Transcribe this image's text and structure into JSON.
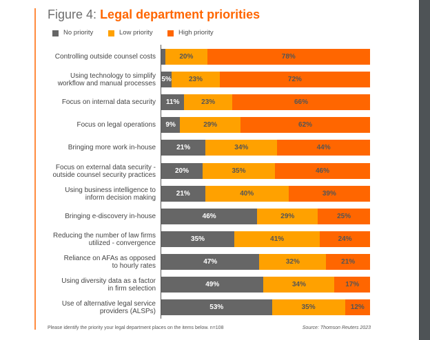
{
  "figure": {
    "prefix": "Figure 4:",
    "title": "Legal department priorities"
  },
  "footnote": "Please identify the priority your legal department places on the items below. n=108",
  "source": "Source: Thomson Reuters 2023",
  "colors": {
    "no_priority": "#666666",
    "low_priority": "#FFA100",
    "high_priority": "#FF6600",
    "title_accent": "#FF6600"
  },
  "chart_data": {
    "type": "bar",
    "orientation": "horizontal",
    "stacked": true,
    "title": "Figure 4: Legal department priorities",
    "xlabel": "",
    "ylabel": "",
    "legend_position": "top-left",
    "legend": [
      "No priority",
      "Low priority",
      "High priority"
    ],
    "categories": [
      "Controlling outside counsel costs",
      "Using technology to simplify workflow and manual processes",
      "Focus on internal data security",
      "Focus on legal operations",
      "Bringing more work in-house",
      "Focus on external data security - outside counsel security practices",
      "Using business intelligence to inform decision making",
      "Bringing e-discovery in-house",
      "Reducing the number of law firms utilized - convergence",
      "Reliance on AFAs as opposed to hourly rates",
      "Using diversity data as a factor in firm selection",
      "Use of alternative legal service providers (ALSPs)"
    ],
    "category_lines": [
      [
        "Controlling outside counsel costs"
      ],
      [
        "Using technology to simplify",
        "workflow and manual processes"
      ],
      [
        "Focus on internal data security"
      ],
      [
        "Focus on legal operations"
      ],
      [
        "Bringing more work in-house"
      ],
      [
        "Focus on external data security -",
        "outside counsel security practices"
      ],
      [
        "Using business intelligence to",
        "inform decision making"
      ],
      [
        "Bringing e-discovery in-house"
      ],
      [
        "Reducing the number of law firms",
        "utilized - convergence"
      ],
      [
        "Reliance on AFAs as opposed",
        "to hourly rates"
      ],
      [
        "Using diversity data as a factor",
        "in firm selection"
      ],
      [
        "Use of alternative legal service",
        "providers (ALSPs)"
      ]
    ],
    "series": [
      {
        "name": "No priority",
        "key": "none",
        "values": [
          2,
          5,
          11,
          9,
          21,
          20,
          21,
          46,
          35,
          47,
          49,
          53
        ],
        "labels": [
          "",
          "5%",
          "11%",
          "9%",
          "21%",
          "20%",
          "21%",
          "46%",
          "35%",
          "47%",
          "49%",
          "53%"
        ]
      },
      {
        "name": "Low priority",
        "key": "low",
        "values": [
          20,
          23,
          23,
          29,
          34,
          35,
          40,
          29,
          41,
          32,
          34,
          35
        ],
        "labels": [
          "20%",
          "23%",
          "23%",
          "29%",
          "34%",
          "35%",
          "40%",
          "29%",
          "41%",
          "32%",
          "34%",
          "35%"
        ]
      },
      {
        "name": "High priority",
        "key": "high",
        "values": [
          78,
          72,
          66,
          62,
          44,
          46,
          39,
          25,
          24,
          21,
          17,
          12
        ],
        "labels": [
          "78%",
          "72%",
          "66%",
          "62%",
          "44%",
          "46%",
          "39%",
          "25%",
          "24%",
          "21%",
          "17%",
          "12%"
        ]
      }
    ],
    "xlim": [
      0,
      100
    ]
  }
}
